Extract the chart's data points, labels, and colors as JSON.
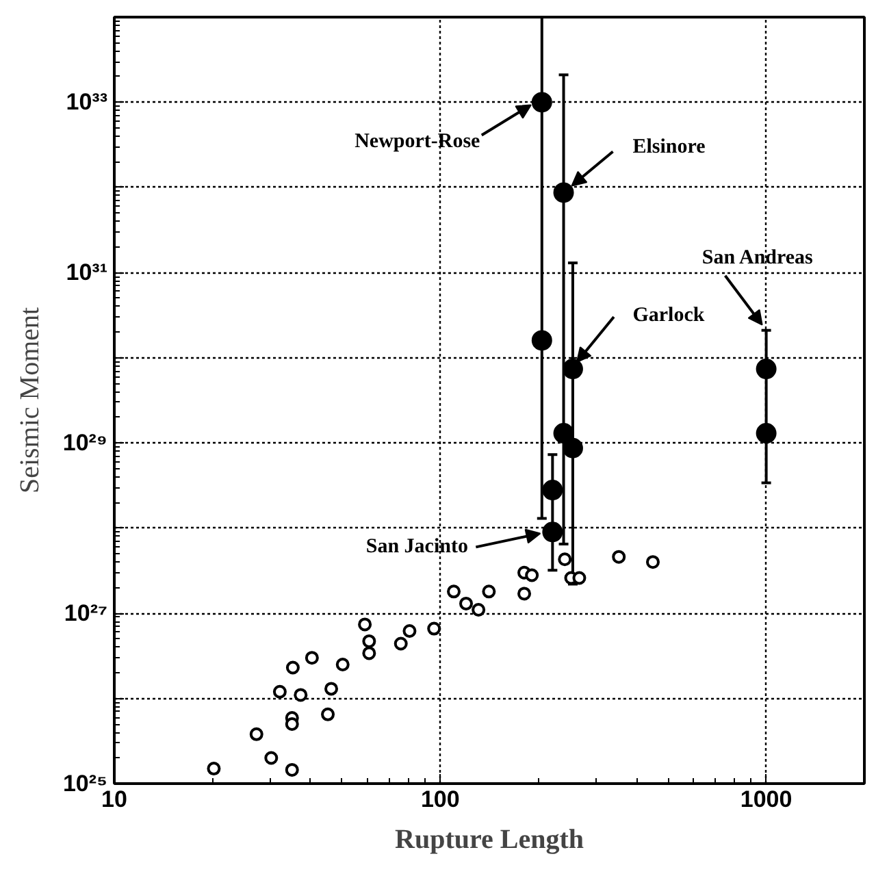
{
  "chart_data": {
    "type": "scatter",
    "xlabel": "Rupture Length",
    "ylabel": "Seismic Moment",
    "log": "xy",
    "grid": true,
    "marker": "circle",
    "xlim": [
      10,
      2000
    ],
    "ylim": [
      1e+25,
      1e+34
    ],
    "xticks": [
      10,
      100,
      1000
    ],
    "yticks": [
      {
        "value": 1e+25,
        "label": "10²⁵"
      },
      {
        "value": 1e+26,
        "label": null
      },
      {
        "value": 1e+27,
        "label": "10²⁷"
      },
      {
        "value": 1e+28,
        "label": null
      },
      {
        "value": 1e+29,
        "label": "10²⁹"
      },
      {
        "value": 1e+30,
        "label": null
      },
      {
        "value": 1e+31,
        "label": "10³¹"
      },
      {
        "value": 1e+32,
        "label": null
      },
      {
        "value": 1e+33,
        "label": "10³³"
      },
      {
        "value": 1e+34,
        "label": null
      }
    ],
    "series": [
      {
        "color": "#000000",
        "x": [
          20.2,
          27.3,
          30.3,
          35.1,
          35.1,
          35.1,
          32.2,
          35.3,
          37.3,
          40.4,
          45.2,
          46.3,
          50.2,
          58.7,
          60.5,
          60.5,
          75.7,
          80.5,
          95.7,
          110,
          120,
          131,
          141,
          181,
          181,
          191,
          241,
          252,
          267,
          353,
          449
        ],
        "values": [
          1.5e+25,
          3.8e+25,
          2e+25,
          1.45e+25,
          5.9e+25,
          5e+25,
          1.2e+26,
          2.3e+26,
          1.1e+26,
          3e+26,
          6.5e+25,
          1.3e+26,
          2.5e+26,
          7.4e+26,
          4.7e+26,
          3.4e+26,
          4.4e+26,
          6.2e+26,
          6.6e+26,
          1.8e+27,
          1.3e+27,
          1.1e+27,
          1.8e+27,
          1.7e+27,
          3e+27,
          2.8e+27,
          4.3e+27,
          2.6e+27,
          2.6e+27,
          4.6e+27,
          4e+27
        ]
      },
      {
        "color": "#000000",
        "x": [
          205,
          205,
          239,
          239,
          255,
          255,
          221,
          221,
          1000,
          1000
        ],
        "values": [
          1e+33,
          1.6e+30,
          8.7e+31,
          1.3e+29,
          7.4e+29,
          8.7e+28,
          9e+27,
          2.8e+28,
          7.4e+29,
          1.3e+29
        ],
        "errors": [
          [
            1.3e+28,
            1e+34
          ],
          null,
          [
            6.5e+27,
            2.1e+33
          ],
          null,
          [
            2.2e+27,
            1.3e+31
          ],
          null,
          [
            3.2e+27,
            7.3e+28
          ],
          null,
          [
            3.4e+28,
            2.1e+30
          ],
          null
        ]
      }
    ],
    "annotations": [
      {
        "text": "Newport-Rose",
        "x": 205,
        "y": 1e+33
      },
      {
        "text": "Elsinore",
        "x": 239,
        "y": 8.7e+31
      },
      {
        "text": "Garlock",
        "x": 255,
        "y": 7.4e+29
      },
      {
        "text": "San Andreas",
        "x": 1000,
        "y": 2.1e+30
      },
      {
        "text": "San Jacinto",
        "x": 221,
        "y": 9e+27
      }
    ]
  }
}
